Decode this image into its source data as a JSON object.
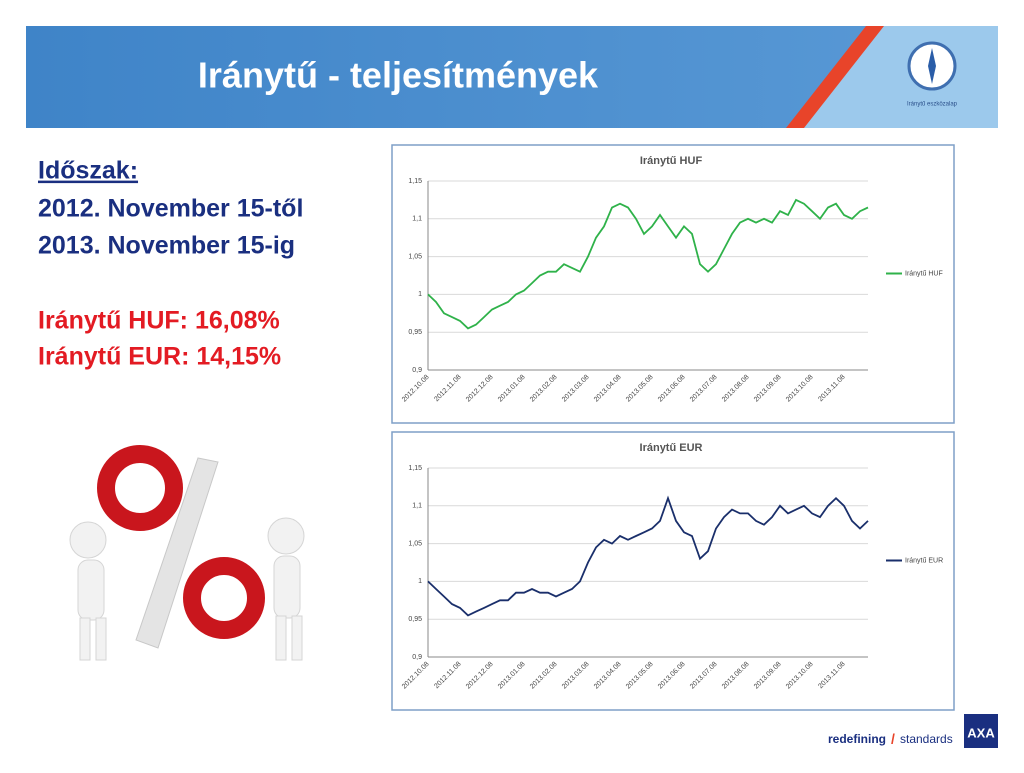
{
  "header": {
    "title": "Iránytű - teljesítmények",
    "logo_caption": "Iránytű eszközalap"
  },
  "period": {
    "heading": "Időszak:",
    "from": "2012. November 15-től",
    "to": "2013. November 15-ig"
  },
  "results": [
    "Iránytű HUF: 16,08%",
    "Iránytű EUR: 14,15%"
  ],
  "footer": {
    "slogan_a": "redefining",
    "slash": "/",
    "slogan_b": "standards",
    "brand": "AXA"
  },
  "chart_data": [
    {
      "type": "line",
      "title": "Iránytű HUF",
      "categories": [
        "2012.10.08",
        null,
        null,
        null,
        "2012.11.08",
        null,
        null,
        null,
        "2012.12.08",
        null,
        null,
        null,
        "2013.01.08",
        null,
        null,
        null,
        "2013.02.08",
        null,
        null,
        null,
        "2013.03.08",
        null,
        null,
        null,
        "2013.04.08",
        null,
        null,
        null,
        "2013.05.08",
        null,
        null,
        null,
        "2013.06.08",
        null,
        null,
        null,
        "2013.07.08",
        null,
        null,
        null,
        "2013.08.08",
        null,
        null,
        null,
        "2013.09.08",
        null,
        null,
        null,
        "2013.10.08",
        null,
        null,
        null,
        "2013.11.08",
        null,
        null,
        null
      ],
      "series": [
        {
          "name": "Iránytű HUF",
          "color": "#2fb24a",
          "values": [
            1.0,
            0.99,
            0.975,
            0.97,
            0.965,
            0.955,
            0.96,
            0.97,
            0.98,
            0.985,
            0.99,
            1.0,
            1.005,
            1.015,
            1.025,
            1.03,
            1.03,
            1.04,
            1.035,
            1.03,
            1.05,
            1.075,
            1.09,
            1.115,
            1.12,
            1.115,
            1.1,
            1.08,
            1.09,
            1.105,
            1.09,
            1.075,
            1.09,
            1.08,
            1.04,
            1.03,
            1.04,
            1.06,
            1.08,
            1.095,
            1.1,
            1.095,
            1.1,
            1.095,
            1.11,
            1.105,
            1.125,
            1.12,
            1.11,
            1.1,
            1.115,
            1.12,
            1.105,
            1.1,
            1.11,
            1.115
          ]
        }
      ],
      "ylim": [
        0.9,
        1.15
      ],
      "yticks": [
        {
          "value": 0.9,
          "label": "0,9"
        },
        {
          "value": 0.95,
          "label": "0,95"
        },
        1,
        {
          "value": 1.05,
          "label": "1,05"
        },
        {
          "value": 1.1,
          "label": "1,1"
        },
        {
          "value": 1.15,
          "label": "1,15"
        }
      ],
      "grid": true,
      "legend": "right"
    },
    {
      "type": "line",
      "title": "Iránytű EUR",
      "categories": [
        "2012.10.08",
        null,
        null,
        null,
        "2012.11.08",
        null,
        null,
        null,
        "2012.12.08",
        null,
        null,
        null,
        "2013.01.08",
        null,
        null,
        null,
        "2013.02.08",
        null,
        null,
        null,
        "2013.03.08",
        null,
        null,
        null,
        "2013.04.08",
        null,
        null,
        null,
        "2013.05.08",
        null,
        null,
        null,
        "2013.06.08",
        null,
        null,
        null,
        "2013.07.08",
        null,
        null,
        null,
        "2013.08.08",
        null,
        null,
        null,
        "2013.09.08",
        null,
        null,
        null,
        "2013.10.08",
        null,
        null,
        null,
        "2013.11.08",
        null,
        null,
        null
      ],
      "series": [
        {
          "name": "Iránytű EUR",
          "color": "#1a2f6b",
          "values": [
            1.0,
            0.99,
            0.98,
            0.97,
            0.965,
            0.955,
            0.96,
            0.965,
            0.97,
            0.975,
            0.975,
            0.985,
            0.985,
            0.99,
            0.985,
            0.985,
            0.98,
            0.985,
            0.99,
            1.0,
            1.025,
            1.045,
            1.055,
            1.05,
            1.06,
            1.055,
            1.06,
            1.065,
            1.07,
            1.08,
            1.11,
            1.08,
            1.065,
            1.06,
            1.03,
            1.04,
            1.07,
            1.085,
            1.095,
            1.09,
            1.09,
            1.08,
            1.075,
            1.085,
            1.1,
            1.09,
            1.095,
            1.1,
            1.09,
            1.085,
            1.1,
            1.11,
            1.1,
            1.08,
            1.07,
            1.08
          ]
        }
      ],
      "ylim": [
        0.9,
        1.15
      ],
      "yticks": [
        {
          "value": 0.9,
          "label": "0,9"
        },
        {
          "value": 0.95,
          "label": "0,95"
        },
        1,
        {
          "value": 1.05,
          "label": "1,05"
        },
        {
          "value": 1.1,
          "label": "1,1"
        },
        {
          "value": 1.15,
          "label": "1,15"
        }
      ],
      "grid": true,
      "legend": "right"
    }
  ]
}
